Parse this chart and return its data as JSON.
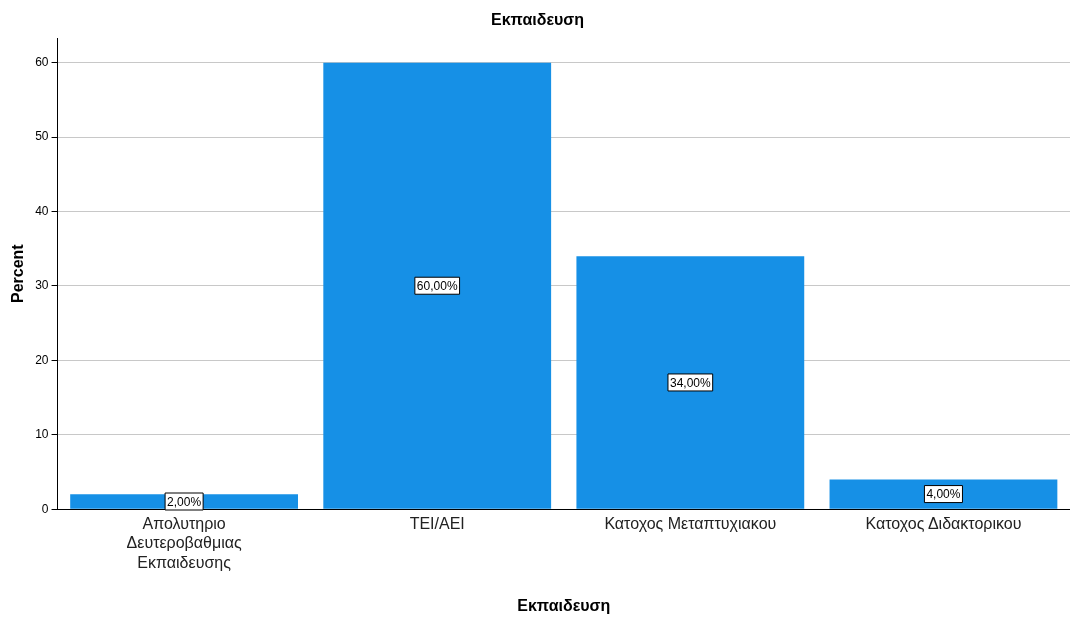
{
  "chart_data": {
    "type": "bar",
    "title": "Εκπαιδευση",
    "xlabel": "Εκπαιδευση",
    "ylabel": "Percent",
    "categories": [
      "Απολυτηριο Δευτεροβαθμιας Εκπαιδευσης",
      "ΤΕΙ/ΑΕΙ",
      "Κατοχος Μεταπτυχιακου",
      "Κατοχος Διδακτορικου"
    ],
    "values": [
      2,
      60,
      34,
      4
    ],
    "value_labels": [
      "2,00%",
      "60,00%",
      "34,00%",
      "4,00%"
    ],
    "color": "#1690e6",
    "ylim": [
      0,
      63.3
    ],
    "yticks": [
      0,
      10,
      20,
      30,
      40,
      50,
      60
    ],
    "grid": "y",
    "legend": false
  }
}
